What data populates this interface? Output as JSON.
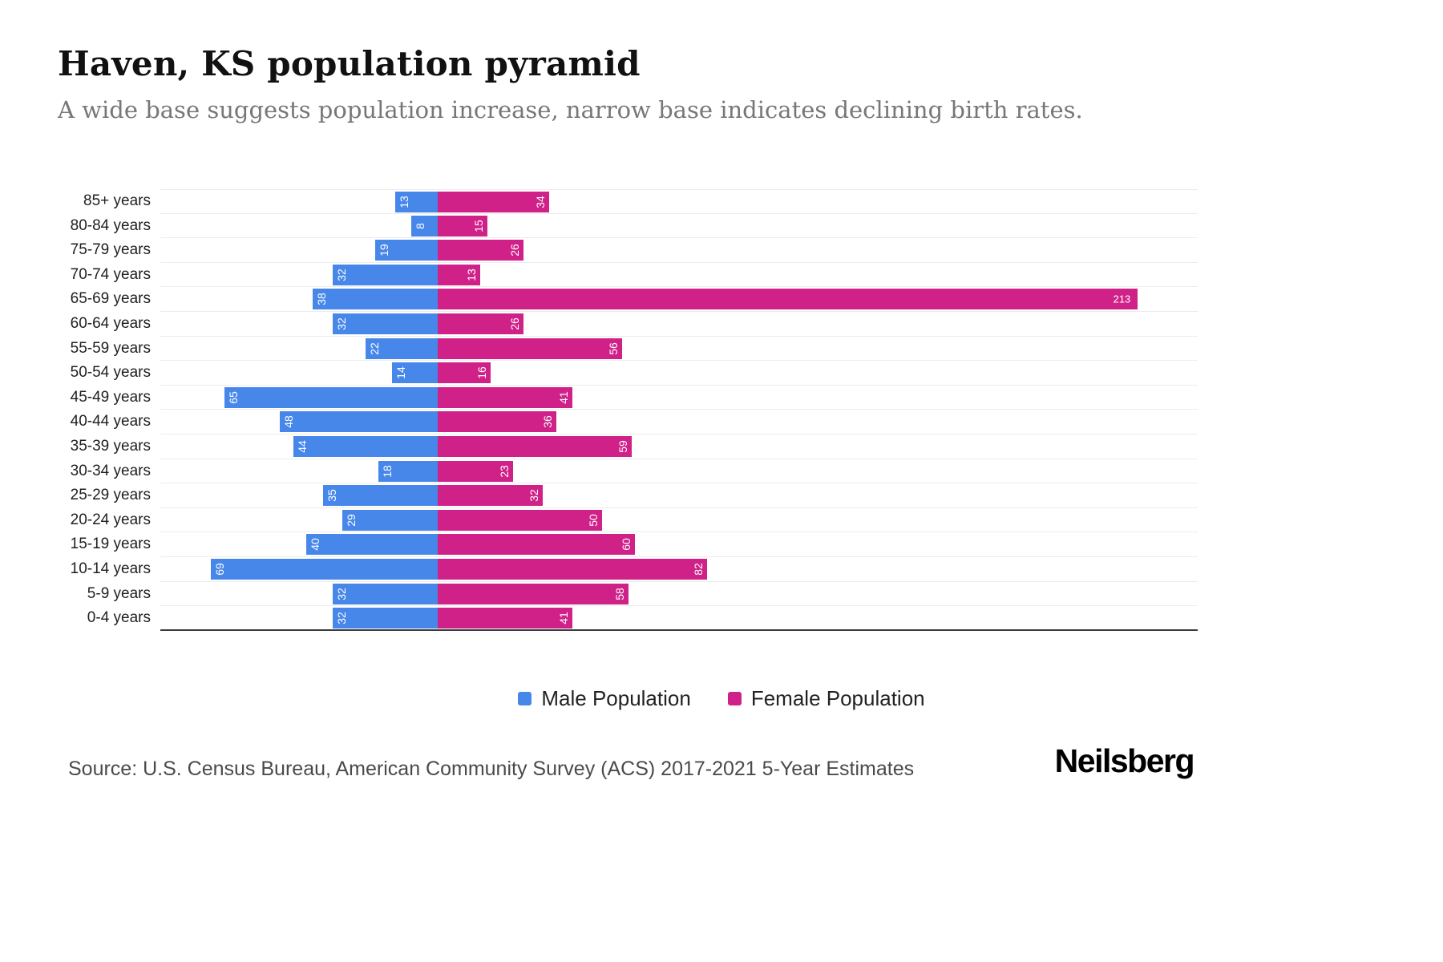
{
  "header": {
    "title": "Haven, KS population pyramid",
    "subtitle": "A wide base suggests population increase, narrow base indicates declining birth rates."
  },
  "chart_data": {
    "type": "bar",
    "variant": "population-pyramid",
    "title": "Haven, KS population pyramid",
    "xlabel": "",
    "ylabel": "",
    "xlim": [
      0,
      213
    ],
    "grid": true,
    "legend_position": "bottom",
    "categories": [
      "85+ years",
      "80-84 years",
      "75-79 years",
      "70-74 years",
      "65-69 years",
      "60-64 years",
      "55-59 years",
      "50-54 years",
      "45-49 years",
      "40-44 years",
      "35-39 years",
      "30-34 years",
      "25-29 years",
      "20-24 years",
      "15-19 years",
      "10-14 years",
      "5-9 years",
      "0-4 years"
    ],
    "series": [
      {
        "name": "Male Population",
        "color": "#4787EA",
        "values": [
          13,
          8,
          19,
          32,
          38,
          32,
          22,
          14,
          65,
          48,
          44,
          18,
          35,
          29,
          40,
          69,
          32,
          32
        ]
      },
      {
        "name": "Female Population",
        "color": "#D02189",
        "values": [
          34,
          15,
          26,
          13,
          213,
          26,
          56,
          16,
          41,
          36,
          59,
          23,
          32,
          50,
          60,
          82,
          58,
          41
        ]
      }
    ]
  },
  "footer": {
    "source": "Source: U.S. Census Bureau, American Community Survey (ACS) 2017-2021 5-Year Estimates",
    "brand": "Neilsberg"
  }
}
